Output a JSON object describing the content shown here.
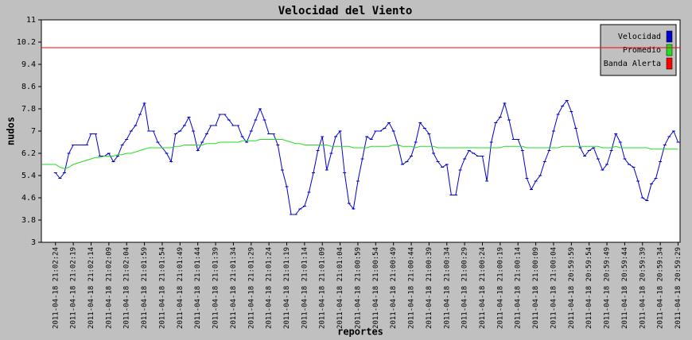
{
  "chart_data": {
    "type": "line",
    "title": "Velocidad del Viento",
    "x_label": "reportes",
    "y_label": "nudos",
    "ylim": [
      3,
      11
    ],
    "yticks": [
      3,
      3.8,
      4.6,
      5.4,
      6.2,
      7,
      7.8,
      8.6,
      9.4,
      10.2,
      11
    ],
    "grid": false,
    "legend": "upper right",
    "categories": [
      null,
      null,
      null,
      "2011-04-18 21:02:24",
      null,
      null,
      null,
      "2011-04-18 21:02:19",
      null,
      null,
      null,
      "2011-04-18 21:02:14",
      null,
      null,
      null,
      "2011-04-18 21:02:09",
      null,
      null,
      null,
      "2011-04-18 21:02:04",
      null,
      null,
      null,
      "2011-04-18 21:01:59",
      null,
      null,
      null,
      "2011-04-18 21:01:54",
      null,
      null,
      null,
      "2011-04-18 21:01:49",
      null,
      null,
      null,
      "2011-04-18 21:01:44",
      null,
      null,
      null,
      "2011-04-18 21:01:39",
      null,
      null,
      null,
      "2011-04-18 21:01:34",
      null,
      null,
      null,
      "2011-04-18 21:01:29",
      null,
      null,
      null,
      "2011-04-18 21:01:24",
      null,
      null,
      null,
      "2011-04-18 21:01:19",
      null,
      null,
      null,
      "2011-04-18 21:01:14",
      null,
      null,
      null,
      "2011-04-18 21:01:09",
      null,
      null,
      null,
      "2011-04-18 21:01:04",
      null,
      null,
      null,
      "2011-04-18 21:00:59",
      null,
      null,
      null,
      "2011-04-18 21:00:54",
      null,
      null,
      null,
      "2011-04-18 21:00:49",
      null,
      null,
      null,
      "2011-04-18 21:00:44",
      null,
      null,
      null,
      "2011-04-18 21:00:39",
      null,
      null,
      null,
      "2011-04-18 21:00:34",
      null,
      null,
      null,
      "2011-04-18 21:00:29",
      null,
      null,
      null,
      "2011-04-18 21:00:24",
      null,
      null,
      null,
      "2011-04-18 21:00:19",
      null,
      null,
      null,
      "2011-04-18 21:00:14",
      null,
      null,
      null,
      "2011-04-18 21:00:09",
      null,
      null,
      null,
      "2011-04-18 21:00:04",
      null,
      null,
      null,
      "2011-04-18 20:59:59",
      null,
      null,
      null,
      "2011-04-18 20:59:54",
      null,
      null,
      null,
      "2011-04-18 20:59:49",
      null,
      null,
      null,
      "2011-04-18 20:59:44",
      null,
      null,
      null,
      "2011-04-18 20:59:39",
      null,
      null,
      null,
      "2011-04-18 20:59:34",
      null,
      null,
      null,
      "2011-04-18 20:59:29"
    ],
    "series": [
      {
        "name": "Velocidad",
        "color": "#0000cc",
        "markers": true,
        "values": [
          null,
          null,
          null,
          5.5,
          5.3,
          5.5,
          6.2,
          6.5,
          6.5,
          6.5,
          6.5,
          6.9,
          6.9,
          6.1,
          6.1,
          6.2,
          5.9,
          6.1,
          6.5,
          6.7,
          7.0,
          7.2,
          7.6,
          8.0,
          7.0,
          7.0,
          6.6,
          6.4,
          6.2,
          5.9,
          6.9,
          7.0,
          7.2,
          7.5,
          7.0,
          6.3,
          6.6,
          6.9,
          7.2,
          7.2,
          7.6,
          7.6,
          7.4,
          7.2,
          7.2,
          6.8,
          6.6,
          7.0,
          7.4,
          7.8,
          7.4,
          6.9,
          6.9,
          6.5,
          5.6,
          5.0,
          4.0,
          4.0,
          4.2,
          4.3,
          4.8,
          5.5,
          6.3,
          6.8,
          5.6,
          6.2,
          6.8,
          7.0,
          5.5,
          4.4,
          4.2,
          5.2,
          6.0,
          6.8,
          6.7,
          7.0,
          7.0,
          7.1,
          7.3,
          7.0,
          6.5,
          5.8,
          5.9,
          6.1,
          6.6,
          7.3,
          7.1,
          6.9,
          6.2,
          5.9,
          5.7,
          5.8,
          4.7,
          4.7,
          5.6,
          6.0,
          6.3,
          6.2,
          6.1,
          6.1,
          5.2,
          6.6,
          7.3,
          7.5,
          8.0,
          7.4,
          6.7,
          6.7,
          6.3,
          5.3,
          4.9,
          5.2,
          5.4,
          5.9,
          6.3,
          7.0,
          7.6,
          7.9,
          8.1,
          7.7,
          7.1,
          6.4,
          6.1,
          6.3,
          6.4,
          6.0,
          5.6,
          5.8,
          6.3,
          6.9,
          6.6,
          6.0,
          5.8,
          5.7,
          5.2,
          4.6,
          4.5,
          5.1,
          5.3,
          5.9,
          6.5,
          6.8,
          7.0,
          6.6
        ]
      },
      {
        "name": "Promedio",
        "color": "#22dd22",
        "markers": false,
        "values": [
          5.8,
          5.8,
          5.8,
          5.8,
          5.7,
          5.65,
          5.7,
          5.8,
          5.85,
          5.9,
          5.95,
          6.0,
          6.05,
          6.05,
          6.1,
          6.1,
          6.1,
          6.15,
          6.15,
          6.2,
          6.2,
          6.25,
          6.3,
          6.35,
          6.4,
          6.4,
          6.4,
          6.4,
          6.4,
          6.4,
          6.45,
          6.45,
          6.5,
          6.5,
          6.5,
          6.5,
          6.5,
          6.55,
          6.55,
          6.55,
          6.6,
          6.6,
          6.6,
          6.6,
          6.6,
          6.65,
          6.65,
          6.65,
          6.65,
          6.7,
          6.7,
          6.7,
          6.7,
          6.7,
          6.7,
          6.65,
          6.6,
          6.55,
          6.55,
          6.5,
          6.5,
          6.5,
          6.5,
          6.5,
          6.5,
          6.45,
          6.45,
          6.45,
          6.45,
          6.45,
          6.4,
          6.4,
          6.4,
          6.4,
          6.45,
          6.45,
          6.45,
          6.45,
          6.45,
          6.5,
          6.5,
          6.45,
          6.45,
          6.45,
          6.4,
          6.45,
          6.45,
          6.45,
          6.45,
          6.4,
          6.4,
          6.4,
          6.4,
          6.4,
          6.4,
          6.4,
          6.4,
          6.4,
          6.4,
          6.4,
          6.4,
          6.4,
          6.4,
          6.4,
          6.45,
          6.45,
          6.45,
          6.45,
          6.45,
          6.4,
          6.4,
          6.4,
          6.4,
          6.4,
          6.4,
          6.4,
          6.4,
          6.45,
          6.45,
          6.45,
          6.45,
          6.45,
          6.45,
          6.45,
          6.45,
          6.45,
          6.4,
          6.4,
          6.4,
          6.45,
          6.4,
          6.4,
          6.4,
          6.4,
          6.4,
          6.4,
          6.4,
          6.35,
          6.35,
          6.35,
          6.35,
          6.35,
          6.35,
          6.35
        ]
      }
    ],
    "threshold": {
      "name": "Banda Alerta",
      "color": "#ff0000",
      "value": 10
    }
  }
}
